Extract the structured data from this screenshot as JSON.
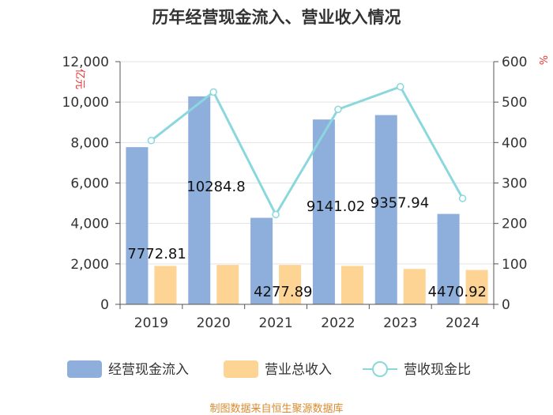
{
  "chart_data": {
    "type": "bar",
    "title": "历年经营现金流入、营业收入情况",
    "categories": [
      "2019",
      "2020",
      "2021",
      "2022",
      "2023",
      "2024"
    ],
    "series": [
      {
        "name": "经营现金流入",
        "kind": "bar",
        "axis": "left",
        "color": "#8eaedb",
        "values": [
          7772.81,
          10284.8,
          4277.89,
          9141.02,
          9357.94,
          4470.92
        ],
        "labels": [
          "7772.81",
          "10284.8",
          "4277.89",
          "9141.02",
          "9357.94",
          "4470.92"
        ]
      },
      {
        "name": "营业总收入",
        "kind": "bar",
        "axis": "left",
        "color": "#fdd494",
        "values": [
          1900,
          1950,
          1950,
          1900,
          1750,
          1700
        ]
      },
      {
        "name": "营收现金比",
        "kind": "line",
        "axis": "right",
        "color": "#8ad8dd",
        "values": [
          405,
          525,
          222,
          482,
          538,
          262
        ]
      }
    ],
    "yleft": {
      "unit": "亿元",
      "min": 0,
      "max": 12000,
      "ticks": [
        "0",
        "2,000",
        "4,000",
        "6,000",
        "8,000",
        "10,000",
        "12,000"
      ]
    },
    "yright": {
      "unit": "%",
      "min": 0,
      "max": 600,
      "ticks": [
        "0",
        "100",
        "200",
        "300",
        "400",
        "500",
        "600"
      ]
    },
    "grid": true,
    "legend_position": "bottom"
  },
  "source": "制图数据来自恒生聚源数据库"
}
